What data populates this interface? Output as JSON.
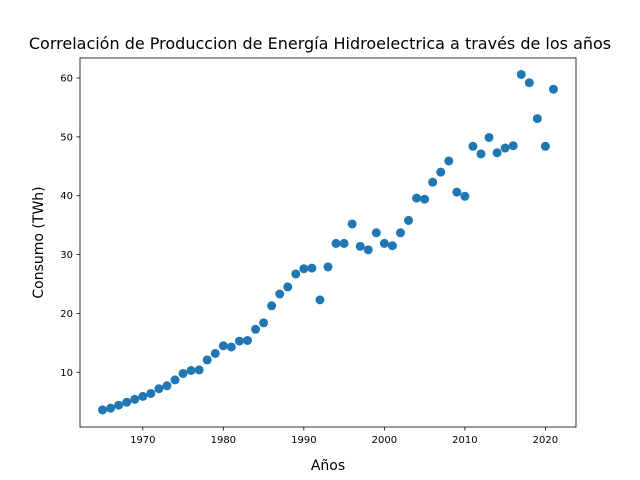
{
  "chart_data": {
    "type": "scatter",
    "title": "Correlación de Produccion de Energía Hidroelectrica a través de los años",
    "xlabel": "Años",
    "ylabel": "Consumo (TWh)",
    "xlim": [
      1962.2,
      2023.8
    ],
    "ylim": [
      0.7,
      63.4
    ],
    "xticks": [
      1970,
      1980,
      1990,
      2000,
      2010,
      2020
    ],
    "yticks": [
      10,
      20,
      30,
      40,
      50,
      60
    ],
    "grid": false,
    "marker_color": "#1f77b4",
    "points": [
      [
        1965,
        3.6
      ],
      [
        1966,
        3.9
      ],
      [
        1967,
        4.4
      ],
      [
        1968,
        4.9
      ],
      [
        1969,
        5.4
      ],
      [
        1970,
        5.9
      ],
      [
        1971,
        6.4
      ],
      [
        1972,
        7.2
      ],
      [
        1973,
        7.7
      ],
      [
        1974,
        8.7
      ],
      [
        1975,
        9.8
      ],
      [
        1976,
        10.3
      ],
      [
        1977,
        10.4
      ],
      [
        1978,
        12.1
      ],
      [
        1979,
        13.2
      ],
      [
        1980,
        14.5
      ],
      [
        1981,
        14.3
      ],
      [
        1982,
        15.3
      ],
      [
        1983,
        15.4
      ],
      [
        1984,
        17.3
      ],
      [
        1985,
        18.4
      ],
      [
        1986,
        21.3
      ],
      [
        1987,
        23.3
      ],
      [
        1988,
        24.5
      ],
      [
        1989,
        26.7
      ],
      [
        1990,
        27.6
      ],
      [
        1991,
        27.7
      ],
      [
        1992,
        22.3
      ],
      [
        1993,
        27.9
      ],
      [
        1994,
        31.9
      ],
      [
        1995,
        31.9
      ],
      [
        1996,
        35.2
      ],
      [
        1997,
        31.4
      ],
      [
        1998,
        30.8
      ],
      [
        1999,
        33.7
      ],
      [
        2000,
        31.9
      ],
      [
        2001,
        31.5
      ],
      [
        2002,
        33.7
      ],
      [
        2003,
        35.8
      ],
      [
        2004,
        39.6
      ],
      [
        2005,
        39.4
      ],
      [
        2006,
        42.3
      ],
      [
        2007,
        44.0
      ],
      [
        2008,
        45.9
      ],
      [
        2009,
        40.6
      ],
      [
        2010,
        39.9
      ],
      [
        2011,
        48.4
      ],
      [
        2012,
        47.1
      ],
      [
        2013,
        49.9
      ],
      [
        2014,
        47.3
      ],
      [
        2015,
        48.1
      ],
      [
        2016,
        48.5
      ],
      [
        2017,
        60.6
      ],
      [
        2018,
        59.2
      ],
      [
        2019,
        53.1
      ],
      [
        2020,
        48.4
      ],
      [
        2021,
        58.1
      ]
    ]
  }
}
